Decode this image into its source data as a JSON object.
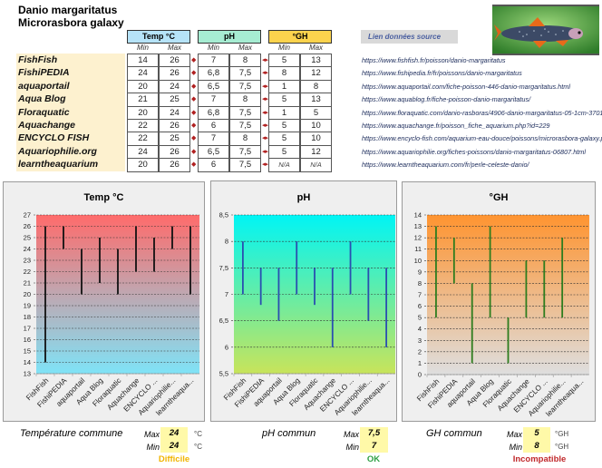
{
  "header": {
    "species": "Danio margaritatus",
    "synonym": "Microrasbora galaxy"
  },
  "table": {
    "groups": [
      {
        "label": "Temp °C",
        "color": "#b6e3f8"
      },
      {
        "label": "pH",
        "color": "#a6ecd2"
      },
      {
        "label": "°GH",
        "color": "#fcd34d"
      }
    ],
    "sub_min": "Min",
    "sub_max": "Max",
    "link_header": "Lien données source",
    "rows": [
      {
        "source": "FishFish",
        "temp_min": "14",
        "temp_max": "26",
        "ph_min": "7",
        "ph_max": "8",
        "gh_min": "5",
        "gh_max": "13",
        "url": "https://www.fishfish.fr/poisson/danio-margaritatus"
      },
      {
        "source": "FishiPEDIA",
        "temp_min": "24",
        "temp_max": "26",
        "ph_min": "6,8",
        "ph_max": "7,5",
        "gh_min": "8",
        "gh_max": "12",
        "url": "https://www.fishipedia.fr/fr/poissons/danio-margaritatus"
      },
      {
        "source": "aquaportail",
        "temp_min": "20",
        "temp_max": "24",
        "ph_min": "6,5",
        "ph_max": "7,5",
        "gh_min": "1",
        "gh_max": "8",
        "url": "https://www.aquaportail.com/fiche-poisson-446-danio-margaritatus.html"
      },
      {
        "source": "Aqua Blog",
        "temp_min": "21",
        "temp_max": "25",
        "ph_min": "7",
        "ph_max": "8",
        "gh_min": "5",
        "gh_max": "13",
        "url": "https://www.aquablog.fr/fiche-poisson-danio-margaritatus/"
      },
      {
        "source": "Floraquatic",
        "temp_min": "20",
        "temp_max": "24",
        "ph_min": "6,8",
        "ph_max": "7,5",
        "gh_min": "1",
        "gh_max": "5",
        "url": "https://www.floraquatic.com/danio-rasboras/4906-danio-margaritatus-05-1cm-370137"
      },
      {
        "source": "Aquachange",
        "temp_min": "22",
        "temp_max": "26",
        "ph_min": "6",
        "ph_max": "7,5",
        "gh_min": "5",
        "gh_max": "10",
        "url": "https://www.aquachange.fr/poisson_fiche_aquarium.php?id=229"
      },
      {
        "source": "ENCYCLO FISH",
        "temp_min": "22",
        "temp_max": "25",
        "ph_min": "7",
        "ph_max": "8",
        "gh_min": "5",
        "gh_max": "10",
        "url": "https://www.encyclo-fish.com/aquarium-eau-douce/poissons/microrasbora-galaxy.ph"
      },
      {
        "source": "Aquariophilie.org",
        "temp_min": "24",
        "temp_max": "26",
        "ph_min": "6,5",
        "ph_max": "7,5",
        "gh_min": "5",
        "gh_max": "12",
        "url": "https://www.aquariophilie.org/fiches-poissons/danio-margaritatus-06807.html"
      },
      {
        "source": "learntheaquarium",
        "temp_min": "20",
        "temp_max": "26",
        "ph_min": "6",
        "ph_max": "7,5",
        "gh_min": "N/A",
        "gh_max": "N/A",
        "url": "https://www.learntheaquarium.com/fr/perle-celeste-danio/"
      }
    ]
  },
  "summary": {
    "temp": {
      "label": "Température commune",
      "max_label": "Max",
      "min_label": "Min",
      "max": "24",
      "min": "24",
      "unit": "°C",
      "verdict": "Difficile",
      "verdict_color": "#f0b400"
    },
    "ph": {
      "label": "pH commun",
      "max_label": "Max",
      "min_label": "Min",
      "max": "7,5",
      "min": "7",
      "unit": "",
      "verdict": "OK",
      "verdict_color": "#2ea043"
    },
    "gh": {
      "label": "GH commun",
      "max_label": "Max",
      "min_label": "Min",
      "max": "5",
      "min": "8",
      "unit": "°GH",
      "verdict": "Incompatible",
      "verdict_color": "#c0282b"
    }
  },
  "chart_data": [
    {
      "type": "bar",
      "subtype": "floating-range",
      "title": "Temp °C",
      "categories": [
        "FishFish",
        "FishiPEDIA",
        "aquaportail",
        "Aqua Blog",
        "Floraquatic",
        "Aquachange",
        "ENCYCLO ...",
        "Aquariophilie...",
        "learntheaqua..."
      ],
      "series": [
        {
          "name": "min",
          "values": [
            14,
            24,
            20,
            21,
            20,
            22,
            22,
            24,
            20
          ]
        },
        {
          "name": "max",
          "values": [
            26,
            26,
            24,
            25,
            24,
            26,
            25,
            26,
            26
          ]
        }
      ],
      "ylim": [
        13,
        27
      ],
      "yticks": [
        13,
        14,
        15,
        16,
        17,
        18,
        19,
        20,
        21,
        22,
        23,
        24,
        25,
        26,
        27
      ],
      "ytick_labels": [
        "13",
        "14",
        "15",
        "16",
        "17",
        "18",
        "19",
        "20",
        "21",
        "22",
        "23",
        "24",
        "25",
        "26",
        "27"
      ],
      "grid": true,
      "bar_color": "#111111",
      "gradient": [
        "#ff6b6b",
        "#7fe3f7"
      ]
    },
    {
      "type": "bar",
      "subtype": "floating-range",
      "title": "pH",
      "categories": [
        "FishFish",
        "FishiPEDIA",
        "aquaportail",
        "Aqua Blog",
        "Floraquatic",
        "Aquachange",
        "ENCYCLO ...",
        "Aquariophilie...",
        "learntheaqua..."
      ],
      "series": [
        {
          "name": "min",
          "values": [
            7,
            6.8,
            6.5,
            7,
            6.8,
            6,
            7,
            6.5,
            6
          ]
        },
        {
          "name": "max",
          "values": [
            8,
            7.5,
            7.5,
            8,
            7.5,
            7.5,
            8,
            7.5,
            7.5
          ]
        }
      ],
      "ylim": [
        5.5,
        8.5
      ],
      "yticks": [
        5.5,
        6,
        6.5,
        7,
        7.5,
        8,
        8.5
      ],
      "ytick_labels": [
        "5,5",
        "6",
        "6,5",
        "7",
        "7,5",
        "8",
        "8,5"
      ],
      "grid": true,
      "bar_color": "#2a4fb0",
      "gradient": [
        "#00f5f5",
        "#c8e45a"
      ]
    },
    {
      "type": "bar",
      "subtype": "floating-range",
      "title": "°GH",
      "categories": [
        "FishFish",
        "FishiPEDIA",
        "aquaportail",
        "Aqua Blog",
        "Floraquatic",
        "Aquachange",
        "ENCYCLO ...",
        "Aquariophilie...",
        "learntheaqua..."
      ],
      "series": [
        {
          "name": "min",
          "values": [
            5,
            8,
            1,
            5,
            1,
            5,
            5,
            5,
            null
          ]
        },
        {
          "name": "max",
          "values": [
            13,
            12,
            8,
            13,
            5,
            10,
            10,
            12,
            null
          ]
        }
      ],
      "ylim": [
        0,
        14
      ],
      "yticks": [
        0,
        1,
        2,
        3,
        4,
        5,
        6,
        7,
        8,
        9,
        10,
        11,
        12,
        13,
        14
      ],
      "ytick_labels": [
        "0",
        "1",
        "2",
        "3",
        "4",
        "5",
        "6",
        "7",
        "8",
        "9",
        "10",
        "11",
        "12",
        "13",
        "14"
      ],
      "grid": true,
      "bar_color": "#2e7d1e",
      "gradient": [
        "#ff9430",
        "#dedede"
      ]
    }
  ]
}
